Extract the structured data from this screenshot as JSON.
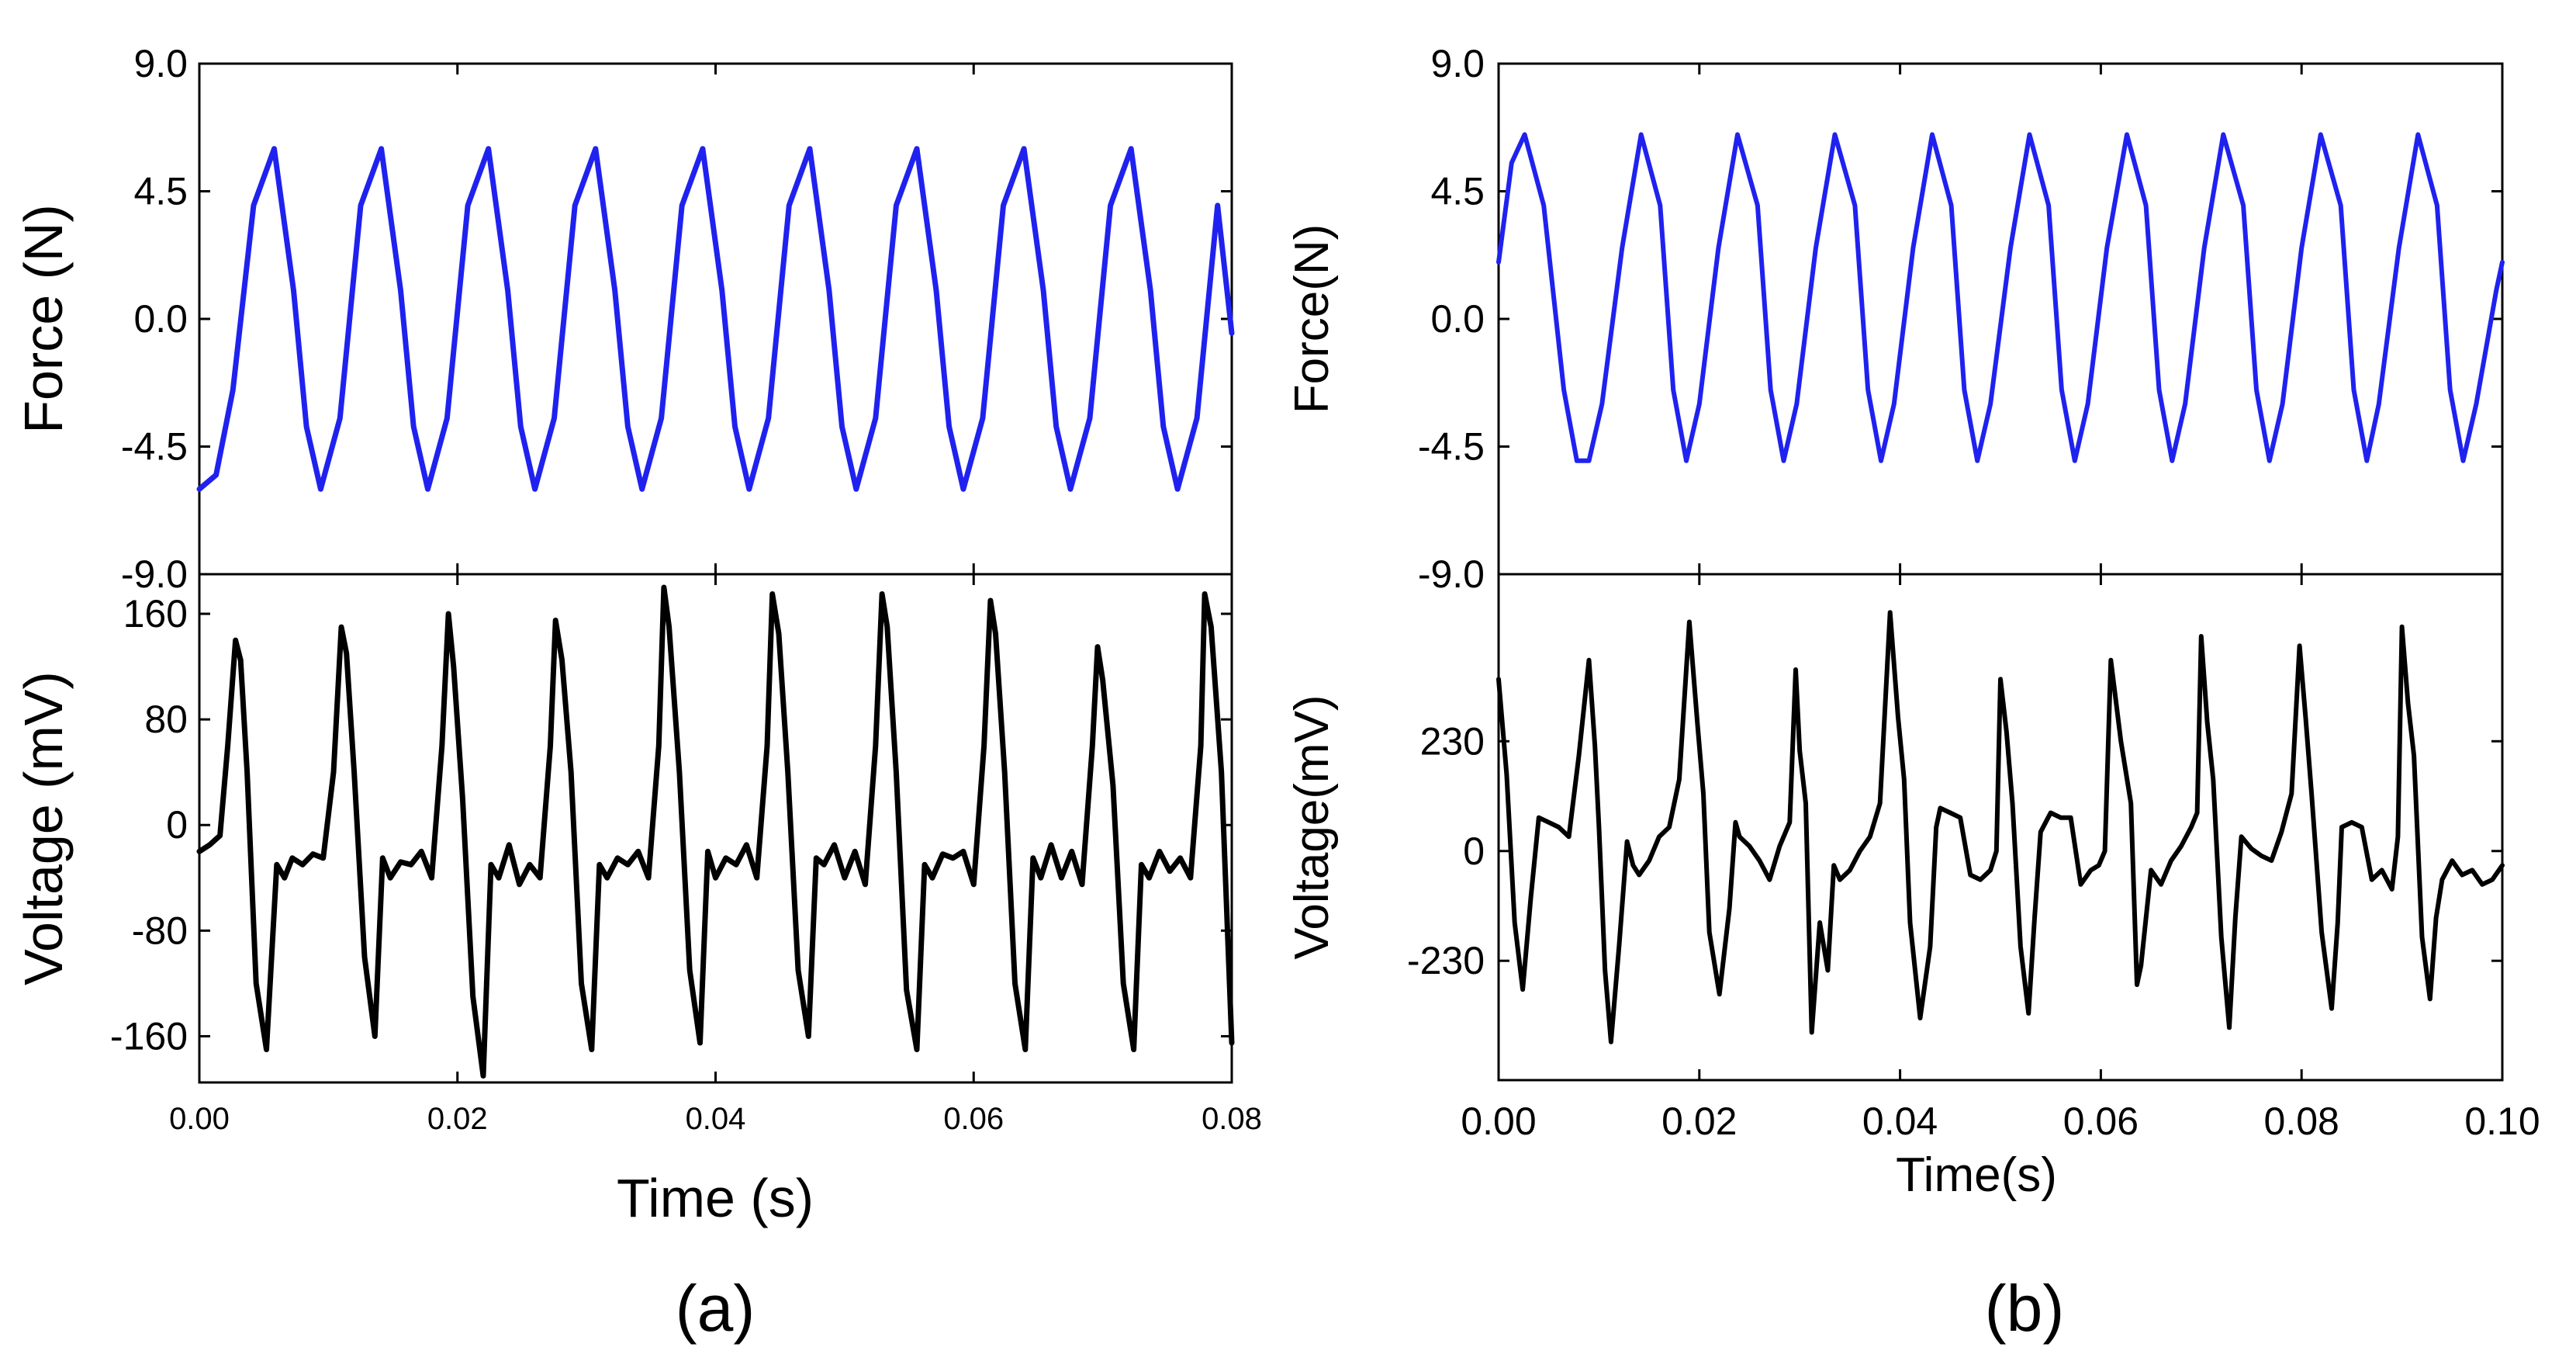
{
  "chart_data": [
    {
      "id": "a",
      "caption": "(a)",
      "type": "line",
      "xlabel": "Time (s)",
      "xlim": [
        0,
        0.08
      ],
      "x_ticks": [
        0,
        0.02,
        0.04,
        0.06,
        0.08
      ],
      "x_tick_labels": [
        "0.00",
        "0.02",
        "0.04",
        "0.06",
        "0.08"
      ],
      "top": {
        "ylabel": "Force (N)",
        "ylim": [
          -9,
          9
        ],
        "y_ticks": [
          9,
          4.5,
          0,
          -4.5,
          -9
        ],
        "y_tick_labels": [
          "9.0",
          "4.5",
          "0.0",
          "-4.5",
          "-9.0"
        ],
        "color": "#1f22ee",
        "series": {
          "name": "Force",
          "x": [
            0.0,
            0.0013,
            0.0026,
            0.0042,
            0.0058,
            0.0073,
            0.0083,
            0.0094,
            0.0109,
            0.0125,
            0.0141,
            0.0156,
            0.0166,
            0.0177,
            0.0192,
            0.0208,
            0.0224,
            0.0239,
            0.0249,
            0.026,
            0.0275,
            0.0291,
            0.0307,
            0.0322,
            0.0332,
            0.0343,
            0.0358,
            0.0374,
            0.039,
            0.0405,
            0.0415,
            0.0426,
            0.0441,
            0.0457,
            0.0473,
            0.0488,
            0.0498,
            0.0509,
            0.0524,
            0.054,
            0.0556,
            0.0571,
            0.0581,
            0.0592,
            0.0607,
            0.0623,
            0.0639,
            0.0654,
            0.0664,
            0.0675,
            0.069,
            0.0706,
            0.0722,
            0.0737,
            0.0747,
            0.0758,
            0.0773,
            0.0789,
            0.08
          ],
          "values": [
            -6.0,
            -5.5,
            -2.5,
            4.0,
            6.0,
            1.0,
            -3.8,
            -6.0,
            -3.5,
            4.0,
            6.0,
            1.0,
            -3.8,
            -6.0,
            -3.5,
            4.0,
            6.0,
            1.0,
            -3.8,
            -6.0,
            -3.5,
            4.0,
            6.0,
            1.0,
            -3.8,
            -6.0,
            -3.5,
            4.0,
            6.0,
            1.0,
            -3.8,
            -6.0,
            -3.5,
            4.0,
            6.0,
            1.0,
            -3.8,
            -6.0,
            -3.5,
            4.0,
            6.0,
            1.0,
            -3.8,
            -6.0,
            -3.5,
            4.0,
            6.0,
            1.0,
            -3.8,
            -6.0,
            -3.5,
            4.0,
            6.0,
            1.0,
            -3.8,
            -6.0,
            -3.5,
            4.0,
            -0.5
          ]
        }
      },
      "bottom": {
        "ylabel": "Voltage (mV)",
        "ylim": [
          -195,
          190
        ],
        "y_ticks": [
          160,
          80,
          0,
          -80,
          -160
        ],
        "y_tick_labels": [
          "160",
          "80",
          "0",
          "-80",
          "-160"
        ],
        "color": "#000000",
        "series": {
          "name": "Voltage",
          "x": [
            0.0,
            0.0008,
            0.0016,
            0.0022,
            0.0028,
            0.0032,
            0.0037,
            0.0044,
            0.0052,
            0.006,
            0.0066,
            0.0072,
            0.008,
            0.0088,
            0.0096,
            0.0104,
            0.011,
            0.0114,
            0.012,
            0.0128,
            0.0136,
            0.0142,
            0.0148,
            0.0156,
            0.0164,
            0.0172,
            0.018,
            0.0188,
            0.0193,
            0.0197,
            0.0204,
            0.0212,
            0.022,
            0.0226,
            0.0232,
            0.024,
            0.0248,
            0.0256,
            0.0264,
            0.0272,
            0.0276,
            0.0281,
            0.0288,
            0.0296,
            0.0304,
            0.031,
            0.0316,
            0.0324,
            0.0332,
            0.034,
            0.0348,
            0.0356,
            0.036,
            0.0364,
            0.0372,
            0.038,
            0.0388,
            0.0394,
            0.04,
            0.0408,
            0.0416,
            0.0424,
            0.0432,
            0.044,
            0.0444,
            0.0449,
            0.0456,
            0.0464,
            0.0472,
            0.0478,
            0.0484,
            0.0492,
            0.05,
            0.0508,
            0.0516,
            0.0524,
            0.0529,
            0.0533,
            0.054,
            0.0548,
            0.0556,
            0.0562,
            0.0568,
            0.0576,
            0.0584,
            0.0592,
            0.06,
            0.0608,
            0.0613,
            0.0617,
            0.0624,
            0.0632,
            0.064,
            0.0646,
            0.0652,
            0.066,
            0.0668,
            0.0676,
            0.0684,
            0.0692,
            0.0696,
            0.07,
            0.0708,
            0.0716,
            0.0724,
            0.073,
            0.0736,
            0.0744,
            0.0752,
            0.076,
            0.0768,
            0.0776,
            0.0779,
            0.0784,
            0.0792,
            0.08
          ],
          "values": [
            -20,
            -15,
            -8,
            60,
            140,
            125,
            40,
            -120,
            -170,
            -30,
            -40,
            -25,
            -30,
            -22,
            -25,
            40,
            150,
            130,
            40,
            -100,
            -160,
            -25,
            -40,
            -28,
            -30,
            -20,
            -40,
            60,
            160,
            120,
            20,
            -130,
            -190,
            -30,
            -40,
            -15,
            -45,
            -30,
            -40,
            60,
            155,
            125,
            40,
            -120,
            -170,
            -30,
            -40,
            -25,
            -30,
            -20,
            -40,
            60,
            180,
            150,
            40,
            -110,
            -165,
            -20,
            -40,
            -25,
            -30,
            -15,
            -40,
            60,
            175,
            145,
            40,
            -110,
            -160,
            -25,
            -30,
            -15,
            -40,
            -20,
            -45,
            60,
            175,
            150,
            40,
            -125,
            -170,
            -30,
            -40,
            -22,
            -25,
            -20,
            -45,
            60,
            170,
            145,
            40,
            -120,
            -170,
            -25,
            -40,
            -15,
            -40,
            -20,
            -45,
            60,
            135,
            110,
            30,
            -120,
            -170,
            -30,
            -40,
            -20,
            -35,
            -25,
            -40,
            60,
            175,
            150,
            40,
            -165
          ]
        }
      }
    },
    {
      "id": "b",
      "caption": "(b)",
      "type": "line",
      "xlabel": "Time(s)",
      "xlim": [
        0,
        0.1
      ],
      "x_ticks": [
        0,
        0.02,
        0.04,
        0.06,
        0.08,
        0.1
      ],
      "x_tick_labels": [
        "0.00",
        "0.02",
        "0.04",
        "0.06",
        "0.08",
        "0.10"
      ],
      "top": {
        "ylabel": "Force(N)",
        "ylim": [
          -9,
          9
        ],
        "y_ticks": [
          9,
          4.5,
          0,
          -4.5,
          -9
        ],
        "y_tick_labels": [
          "9.0",
          "4.5",
          "0.0",
          "-4.5",
          "-9.0"
        ],
        "color": "#1f22ee",
        "series": {
          "name": "Force",
          "x": [
            0.0,
            0.0013,
            0.0026,
            0.0045,
            0.0065,
            0.0078,
            0.009,
            0.0103,
            0.0123,
            0.0142,
            0.0161,
            0.0174,
            0.0187,
            0.02,
            0.0219,
            0.0238,
            0.0258,
            0.0271,
            0.0284,
            0.0297,
            0.0316,
            0.0335,
            0.0355,
            0.0368,
            0.0381,
            0.0394,
            0.0413,
            0.0432,
            0.0451,
            0.0464,
            0.0477,
            0.049,
            0.051,
            0.0529,
            0.0548,
            0.0561,
            0.0574,
            0.0587,
            0.0606,
            0.0626,
            0.0645,
            0.0658,
            0.0671,
            0.0684,
            0.0703,
            0.0722,
            0.0742,
            0.0755,
            0.0768,
            0.0781,
            0.08,
            0.0819,
            0.0839,
            0.0852,
            0.0865,
            0.0877,
            0.0897,
            0.0916,
            0.0935,
            0.0948,
            0.0961,
            0.0974,
            0.0994,
            0.1
          ],
          "values": [
            2.0,
            5.5,
            6.5,
            4.0,
            -2.5,
            -5.0,
            -5.0,
            -3.0,
            2.5,
            6.5,
            4.0,
            -2.5,
            -5.0,
            -3.0,
            2.5,
            6.5,
            4.0,
            -2.5,
            -5.0,
            -3.0,
            2.5,
            6.5,
            4.0,
            -2.5,
            -5.0,
            -3.0,
            2.5,
            6.5,
            4.0,
            -2.5,
            -5.0,
            -3.0,
            2.5,
            6.5,
            4.0,
            -2.5,
            -5.0,
            -3.0,
            2.5,
            6.5,
            4.0,
            -2.5,
            -5.0,
            -3.0,
            2.5,
            6.5,
            4.0,
            -2.5,
            -5.0,
            -3.0,
            2.5,
            6.5,
            4.0,
            -2.5,
            -5.0,
            -3.0,
            2.5,
            6.5,
            4.0,
            -2.5,
            -5.0,
            -3.0,
            1.0,
            2.0
          ]
        }
      },
      "bottom": {
        "ylabel": "Voltage(mV)",
        "ylim": [
          -480,
          580
        ],
        "y_ticks": [
          230,
          0,
          -230
        ],
        "y_tick_labels": [
          "230",
          "0",
          "-230"
        ],
        "color": "#000000",
        "series": {
          "name": "Voltage",
          "x": [
            0.0,
            0.0008,
            0.0016,
            0.0024,
            0.0032,
            0.004,
            0.005,
            0.006,
            0.007,
            0.008,
            0.009,
            0.0096,
            0.01,
            0.0106,
            0.0112,
            0.012,
            0.0128,
            0.0134,
            0.014,
            0.015,
            0.016,
            0.017,
            0.018,
            0.019,
            0.0198,
            0.0204,
            0.021,
            0.022,
            0.023,
            0.0236,
            0.024,
            0.025,
            0.026,
            0.027,
            0.028,
            0.029,
            0.0296,
            0.03,
            0.0306,
            0.0312,
            0.032,
            0.0328,
            0.0334,
            0.034,
            0.035,
            0.036,
            0.037,
            0.038,
            0.039,
            0.0398,
            0.0404,
            0.041,
            0.042,
            0.043,
            0.0436,
            0.044,
            0.045,
            0.046,
            0.047,
            0.048,
            0.049,
            0.0496,
            0.05,
            0.0506,
            0.0512,
            0.052,
            0.0528,
            0.0534,
            0.054,
            0.055,
            0.056,
            0.057,
            0.058,
            0.059,
            0.0598,
            0.0604,
            0.061,
            0.062,
            0.063,
            0.0636,
            0.064,
            0.065,
            0.066,
            0.067,
            0.068,
            0.069,
            0.0696,
            0.07,
            0.0706,
            0.0712,
            0.072,
            0.0728,
            0.0734,
            0.074,
            0.075,
            0.076,
            0.077,
            0.078,
            0.079,
            0.0798,
            0.0804,
            0.081,
            0.082,
            0.083,
            0.0836,
            0.084,
            0.085,
            0.086,
            0.087,
            0.088,
            0.089,
            0.0896,
            0.09,
            0.0906,
            0.0912,
            0.092,
            0.0928,
            0.0934,
            0.094,
            0.095,
            0.096,
            0.097,
            0.098,
            0.099,
            0.1
          ],
          "values": [
            360,
            160,
            -150,
            -290,
            -100,
            70,
            60,
            50,
            30,
            200,
            400,
            220,
            50,
            -250,
            -400,
            -200,
            20,
            -30,
            -50,
            -20,
            30,
            50,
            150,
            480,
            270,
            120,
            -170,
            -300,
            -120,
            60,
            30,
            10,
            -20,
            -60,
            10,
            60,
            380,
            210,
            100,
            -380,
            -150,
            -250,
            -30,
            -60,
            -40,
            0,
            30,
            100,
            500,
            280,
            150,
            -150,
            -350,
            -200,
            50,
            90,
            80,
            70,
            -50,
            -60,
            -40,
            0,
            360,
            250,
            100,
            -200,
            -340,
            -140,
            40,
            80,
            70,
            70,
            -70,
            -40,
            -30,
            0,
            400,
            230,
            100,
            -280,
            -240,
            -40,
            -70,
            -20,
            10,
            50,
            80,
            450,
            270,
            150,
            -180,
            -370,
            -140,
            30,
            5,
            -10,
            -20,
            40,
            120,
            430,
            280,
            120,
            -170,
            -330,
            -150,
            50,
            60,
            50,
            -60,
            -40,
            -80,
            30,
            470,
            310,
            200,
            -180,
            -310,
            -140,
            -60,
            -20,
            -50,
            -40,
            -70,
            -60,
            -30
          ]
        }
      }
    }
  ]
}
